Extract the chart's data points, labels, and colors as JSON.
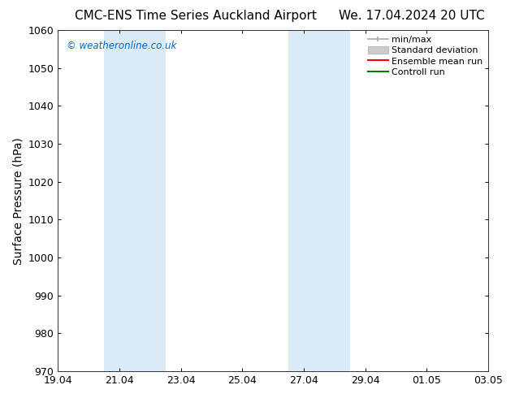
{
  "title_left": "CMC-ENS Time Series Auckland Airport",
  "title_right": "We. 17.04.2024 20 UTC",
  "ylabel": "Surface Pressure (hPa)",
  "ylim": [
    970,
    1060
  ],
  "yticks": [
    970,
    980,
    990,
    1000,
    1010,
    1020,
    1030,
    1040,
    1050,
    1060
  ],
  "xtick_labels": [
    "19.04",
    "21.04",
    "23.04",
    "25.04",
    "27.04",
    "29.04",
    "01.05",
    "03.05"
  ],
  "xlim": [
    0,
    14
  ],
  "shaded_regions": [
    {
      "x_start": 1.5,
      "x_end": 3.5,
      "color": "#daeaf7"
    },
    {
      "x_start": 7.5,
      "x_end": 9.5,
      "color": "#daeaf7"
    }
  ],
  "legend_items": [
    {
      "label": "min/max",
      "color": "#aaaaaa",
      "lw": 1.5
    },
    {
      "label": "Standard deviation",
      "color": "#cccccc",
      "lw": 8
    },
    {
      "label": "Ensemble mean run",
      "color": "#ff0000",
      "lw": 1.5
    },
    {
      "label": "Controll run",
      "color": "#008000",
      "lw": 1.5
    }
  ],
  "watermark": "© weatheronline.co.uk",
  "watermark_color": "#0066cc",
  "bg_color": "#ffffff",
  "plot_bg_color": "#ffffff",
  "title_fontsize": 11,
  "tick_fontsize": 9,
  "ylabel_fontsize": 10,
  "legend_fontsize": 8
}
